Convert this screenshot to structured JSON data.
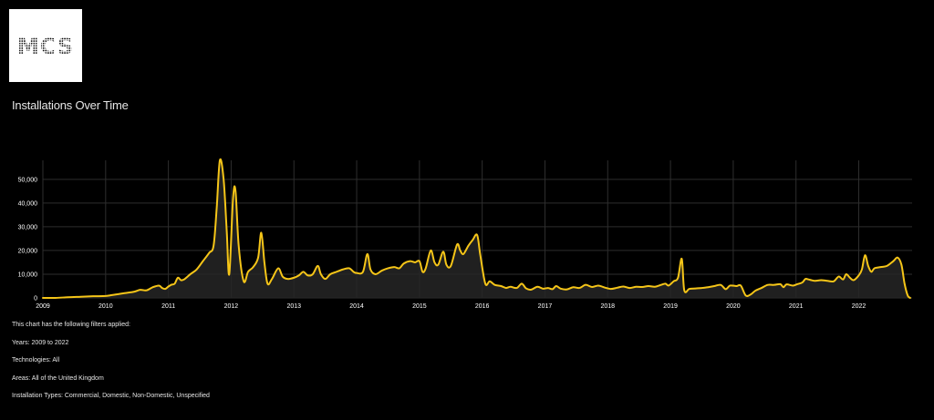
{
  "logo": {
    "text": "MCS"
  },
  "page_title": "Installations Over Time",
  "colors": {
    "background": "#000000",
    "line": "#f5c518",
    "fill": "#262626",
    "grid": "#2e2e2e",
    "text": "#ffffff"
  },
  "chart_data": {
    "type": "area",
    "title": "",
    "xlabel": "",
    "ylabel": "",
    "x_ticks": [
      "2009",
      "2010",
      "2011",
      "2012",
      "2013",
      "2014",
      "2015",
      "2016",
      "2017",
      "2018",
      "2019",
      "2020",
      "2021",
      "2022"
    ],
    "y_ticks": [
      "0",
      "10,000",
      "20,000",
      "30,000",
      "40,000",
      "50,000"
    ],
    "ylim": [
      0,
      58000
    ],
    "xlim": [
      2009.0,
      2022.85
    ],
    "grid": true,
    "series": [
      {
        "points": [
          [
            2009.0,
            0
          ],
          [
            2009.2,
            0
          ],
          [
            2009.4,
            300
          ],
          [
            2009.6,
            500
          ],
          [
            2009.8,
            700
          ],
          [
            2010.0,
            800
          ],
          [
            2010.1,
            1200
          ],
          [
            2010.2,
            1600
          ],
          [
            2010.3,
            2000
          ],
          [
            2010.45,
            2600
          ],
          [
            2010.55,
            3400
          ],
          [
            2010.65,
            3200
          ],
          [
            2010.75,
            4500
          ],
          [
            2010.85,
            5200
          ],
          [
            2010.9,
            4200
          ],
          [
            2010.95,
            3800
          ],
          [
            2011.0,
            4800
          ],
          [
            2011.05,
            5600
          ],
          [
            2011.1,
            6000
          ],
          [
            2011.15,
            8500
          ],
          [
            2011.2,
            7500
          ],
          [
            2011.25,
            7800
          ],
          [
            2011.35,
            10000
          ],
          [
            2011.45,
            12000
          ],
          [
            2011.55,
            15500
          ],
          [
            2011.65,
            19000
          ],
          [
            2011.72,
            22000
          ],
          [
            2011.77,
            38000
          ],
          [
            2011.82,
            58000
          ],
          [
            2011.88,
            50000
          ],
          [
            2011.93,
            28000
          ],
          [
            2011.97,
            10000
          ],
          [
            2012.03,
            42000
          ],
          [
            2012.07,
            45000
          ],
          [
            2012.12,
            22000
          ],
          [
            2012.2,
            7000
          ],
          [
            2012.27,
            11000
          ],
          [
            2012.35,
            13000
          ],
          [
            2012.43,
            17000
          ],
          [
            2012.48,
            27500
          ],
          [
            2012.53,
            15000
          ],
          [
            2012.58,
            6000
          ],
          [
            2012.65,
            8000
          ],
          [
            2012.75,
            12500
          ],
          [
            2012.82,
            9000
          ],
          [
            2012.9,
            8000
          ],
          [
            2013.0,
            8500
          ],
          [
            2013.08,
            9500
          ],
          [
            2013.15,
            11000
          ],
          [
            2013.22,
            9500
          ],
          [
            2013.3,
            10000
          ],
          [
            2013.38,
            13500
          ],
          [
            2013.43,
            10000
          ],
          [
            2013.5,
            8000
          ],
          [
            2013.58,
            10000
          ],
          [
            2013.68,
            11000
          ],
          [
            2013.78,
            12000
          ],
          [
            2013.88,
            12500
          ],
          [
            2013.95,
            11000
          ],
          [
            2014.0,
            10500
          ],
          [
            2014.1,
            11000
          ],
          [
            2014.17,
            18500
          ],
          [
            2014.22,
            12000
          ],
          [
            2014.3,
            10000
          ],
          [
            2014.4,
            11500
          ],
          [
            2014.5,
            12500
          ],
          [
            2014.6,
            13000
          ],
          [
            2014.68,
            12500
          ],
          [
            2014.75,
            14500
          ],
          [
            2014.85,
            15500
          ],
          [
            2014.93,
            15000
          ],
          [
            2015.0,
            15500
          ],
          [
            2015.05,
            11000
          ],
          [
            2015.1,
            12500
          ],
          [
            2015.18,
            20000
          ],
          [
            2015.24,
            15000
          ],
          [
            2015.3,
            14000
          ],
          [
            2015.38,
            19500
          ],
          [
            2015.43,
            14000
          ],
          [
            2015.5,
            13500
          ],
          [
            2015.6,
            22500
          ],
          [
            2015.65,
            20000
          ],
          [
            2015.7,
            18500
          ],
          [
            2015.78,
            22000
          ],
          [
            2015.85,
            24500
          ],
          [
            2015.92,
            26500
          ],
          [
            2015.97,
            18000
          ],
          [
            2016.05,
            6000
          ],
          [
            2016.12,
            7000
          ],
          [
            2016.2,
            5500
          ],
          [
            2016.3,
            5000
          ],
          [
            2016.38,
            4200
          ],
          [
            2016.45,
            4700
          ],
          [
            2016.55,
            4200
          ],
          [
            2016.63,
            6000
          ],
          [
            2016.7,
            4000
          ],
          [
            2016.78,
            3500
          ],
          [
            2016.88,
            4700
          ],
          [
            2016.97,
            3900
          ],
          [
            2017.05,
            4200
          ],
          [
            2017.12,
            3700
          ],
          [
            2017.18,
            5000
          ],
          [
            2017.25,
            3900
          ],
          [
            2017.35,
            3600
          ],
          [
            2017.45,
            4500
          ],
          [
            2017.55,
            4200
          ],
          [
            2017.65,
            5500
          ],
          [
            2017.75,
            4600
          ],
          [
            2017.85,
            5200
          ],
          [
            2017.95,
            4400
          ],
          [
            2018.05,
            3800
          ],
          [
            2018.15,
            4300
          ],
          [
            2018.25,
            4800
          ],
          [
            2018.35,
            4200
          ],
          [
            2018.45,
            4700
          ],
          [
            2018.55,
            4600
          ],
          [
            2018.65,
            5000
          ],
          [
            2018.75,
            4700
          ],
          [
            2018.85,
            5500
          ],
          [
            2018.92,
            6000
          ],
          [
            2018.97,
            5200
          ],
          [
            2019.05,
            7000
          ],
          [
            2019.12,
            8500
          ],
          [
            2019.18,
            16500
          ],
          [
            2019.22,
            3200
          ],
          [
            2019.3,
            3800
          ],
          [
            2019.4,
            4000
          ],
          [
            2019.5,
            4200
          ],
          [
            2019.6,
            4500
          ],
          [
            2019.7,
            5000
          ],
          [
            2019.8,
            5500
          ],
          [
            2019.88,
            3700
          ],
          [
            2019.95,
            5200
          ],
          [
            2020.05,
            5000
          ],
          [
            2020.12,
            5200
          ],
          [
            2020.2,
            1000
          ],
          [
            2020.28,
            1500
          ],
          [
            2020.35,
            3000
          ],
          [
            2020.45,
            4200
          ],
          [
            2020.55,
            5500
          ],
          [
            2020.65,
            5500
          ],
          [
            2020.75,
            5800
          ],
          [
            2020.8,
            4500
          ],
          [
            2020.85,
            5700
          ],
          [
            2020.95,
            5200
          ],
          [
            2021.02,
            5800
          ],
          [
            2021.1,
            6500
          ],
          [
            2021.15,
            8000
          ],
          [
            2021.2,
            7800
          ],
          [
            2021.3,
            7200
          ],
          [
            2021.4,
            7500
          ],
          [
            2021.5,
            7200
          ],
          [
            2021.6,
            7000
          ],
          [
            2021.68,
            9000
          ],
          [
            2021.75,
            7800
          ],
          [
            2021.8,
            10000
          ],
          [
            2021.86,
            8500
          ],
          [
            2021.92,
            7500
          ],
          [
            2022.0,
            9500
          ],
          [
            2022.05,
            12000
          ],
          [
            2022.1,
            18000
          ],
          [
            2022.15,
            13500
          ],
          [
            2022.2,
            11000
          ],
          [
            2022.25,
            12500
          ],
          [
            2022.35,
            13000
          ],
          [
            2022.45,
            13500
          ],
          [
            2022.55,
            15500
          ],
          [
            2022.62,
            17000
          ],
          [
            2022.68,
            14000
          ],
          [
            2022.73,
            6000
          ],
          [
            2022.78,
            1000
          ],
          [
            2022.82,
            0
          ]
        ]
      }
    ]
  },
  "filters": {
    "heading": "This chart has the following filters applied:",
    "years": "Years: 2009 to 2022",
    "technologies": "Technologies: All",
    "areas": "Areas: All of the United Kingdom",
    "installation_types": "Installation Types: Commercial, Domestic, Non-Domestic, Unspecified"
  }
}
